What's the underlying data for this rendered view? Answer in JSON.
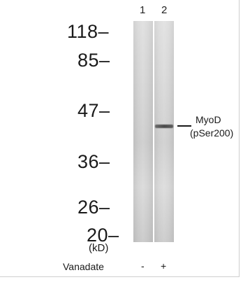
{
  "lanes": [
    {
      "number": "1",
      "treatment": "-"
    },
    {
      "number": "2",
      "treatment": "+"
    }
  ],
  "markers": [
    "118",
    "85",
    "47",
    "36",
    "26",
    "20"
  ],
  "unit_label": "(kD)",
  "band": {
    "line1": "MyoD",
    "line2": "(pSer200)"
  },
  "treatment_label": "Vanadate",
  "colors": {
    "lane": "#d6d6d6",
    "band": "#555555",
    "text": "#1a1a1a"
  }
}
